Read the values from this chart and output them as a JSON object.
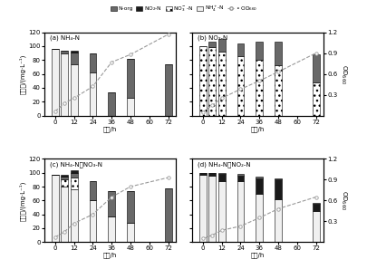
{
  "time_ticks": [
    0,
    12,
    24,
    36,
    48,
    60,
    72
  ],
  "bar_x": [
    0,
    6,
    12,
    24,
    36,
    48,
    72
  ],
  "panel_a": {
    "title": "(a) NH₄-N",
    "NH4": [
      96,
      89,
      74,
      62,
      0,
      25,
      0
    ],
    "Norg": [
      0,
      5,
      17,
      28,
      33,
      57,
      74
    ],
    "NO2": [
      0,
      0,
      2,
      0,
      0,
      0,
      0
    ],
    "OD": [
      0.06,
      0.18,
      0.25,
      0.42,
      0.77,
      0.88,
      1.17
    ]
  },
  "panel_b": {
    "title": "(b) NO₃-N",
    "NO3": [
      100,
      98,
      92,
      86,
      80,
      72,
      48
    ],
    "Norg": [
      0,
      8,
      18,
      18,
      26,
      35,
      40
    ],
    "OD": [
      0.05,
      0.15,
      0.25,
      0.38,
      0.5,
      0.63,
      0.9
    ]
  },
  "panel_c": {
    "title": "(c) NH₄-N和NO₃-N",
    "NH4": [
      97,
      80,
      76,
      60,
      37,
      28,
      0
    ],
    "NO3": [
      0,
      10,
      17,
      0,
      0,
      0,
      0
    ],
    "Norg": [
      0,
      5,
      7,
      28,
      36,
      46,
      77
    ],
    "NO2": [
      0,
      2,
      3,
      0,
      0,
      0,
      0
    ],
    "OD": [
      0.07,
      0.15,
      0.27,
      0.4,
      0.65,
      0.8,
      0.93
    ]
  },
  "panel_d": {
    "title": "(d) NH₄-N和NO₂-N",
    "NH4": [
      97,
      96,
      88,
      88,
      70,
      62,
      45
    ],
    "NO2": [
      3,
      3,
      10,
      8,
      22,
      28,
      10
    ],
    "Norg": [
      0,
      0,
      2,
      2,
      2,
      2,
      2
    ],
    "OD": [
      0.05,
      0.1,
      0.17,
      0.23,
      0.35,
      0.48,
      0.65
    ]
  },
  "c_Norg": "#696969",
  "c_NO2": "#1a1a1a",
  "c_NH4": "#f0f0f0",
  "c_NO3_face": "#d0d0d0",
  "xlabel": "时间/h",
  "ylabel_left": "氮浓度/(mg·L⁻¹)",
  "bar_width": 4.5,
  "ylim": [
    0,
    120
  ],
  "y2lim": [
    0,
    1.2
  ],
  "yticks": [
    0,
    20,
    40,
    60,
    80,
    100,
    120
  ],
  "y2ticks_b": [
    0.3,
    0.6,
    0.9,
    1.2
  ],
  "y2ticks_d": [
    0.3,
    0.6,
    0.9,
    1.2
  ]
}
